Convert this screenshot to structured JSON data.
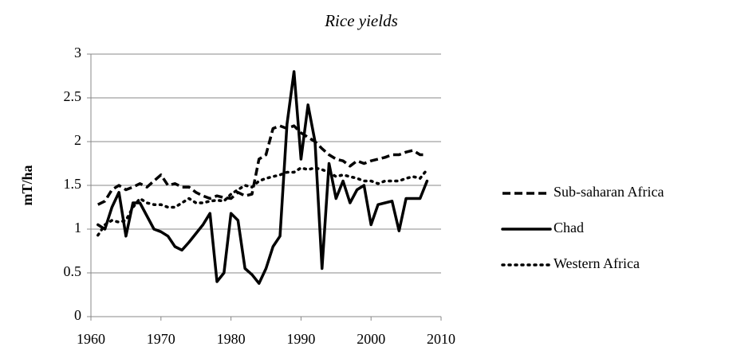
{
  "chart_data": {
    "type": "line",
    "title": "Rice yields",
    "y_label": "mT/ha",
    "x": [
      1961,
      1962,
      1963,
      1964,
      1965,
      1966,
      1967,
      1968,
      1969,
      1970,
      1971,
      1972,
      1973,
      1974,
      1975,
      1976,
      1977,
      1978,
      1979,
      1980,
      1981,
      1982,
      1983,
      1984,
      1985,
      1986,
      1987,
      1988,
      1989,
      1990,
      1991,
      1992,
      1993,
      1994,
      1995,
      1996,
      1997,
      1998,
      1999,
      2000,
      2001,
      2002,
      2003,
      2004,
      2005,
      2006,
      2007,
      2008
    ],
    "series": [
      {
        "name": "Sub-saharan Africa",
        "color": "#000000",
        "style": "dashed",
        "values": [
          1.28,
          1.32,
          1.45,
          1.5,
          1.45,
          1.48,
          1.52,
          1.48,
          1.55,
          1.62,
          1.5,
          1.52,
          1.48,
          1.48,
          1.42,
          1.38,
          1.35,
          1.38,
          1.36,
          1.35,
          1.42,
          1.38,
          1.4,
          1.8,
          1.85,
          2.15,
          2.18,
          2.15,
          2.18,
          2.1,
          2.05,
          2.0,
          1.92,
          1.85,
          1.8,
          1.78,
          1.72,
          1.78,
          1.75,
          1.78,
          1.8,
          1.82,
          1.85,
          1.85,
          1.88,
          1.9,
          1.85,
          1.85
        ]
      },
      {
        "name": "Chad",
        "color": "#000000",
        "style": "solid",
        "values": [
          1.05,
          1.0,
          1.25,
          1.42,
          0.92,
          1.3,
          1.3,
          1.15,
          1.0,
          0.97,
          0.92,
          0.8,
          0.76,
          0.85,
          0.95,
          1.05,
          1.18,
          0.4,
          0.5,
          1.18,
          1.1,
          0.55,
          0.48,
          0.38,
          0.55,
          0.8,
          0.92,
          2.2,
          2.8,
          1.8,
          2.42,
          2.0,
          0.55,
          1.75,
          1.35,
          1.55,
          1.3,
          1.45,
          1.5,
          1.05,
          1.28,
          1.3,
          1.32,
          0.98,
          1.35,
          1.35,
          1.35,
          1.55
        ]
      },
      {
        "name": "Western Africa",
        "color": "#000000",
        "style": "dotted",
        "values": [
          0.93,
          1.05,
          1.1,
          1.08,
          1.1,
          1.25,
          1.35,
          1.3,
          1.28,
          1.28,
          1.25,
          1.25,
          1.3,
          1.35,
          1.3,
          1.3,
          1.32,
          1.33,
          1.32,
          1.4,
          1.45,
          1.5,
          1.48,
          1.55,
          1.58,
          1.6,
          1.62,
          1.65,
          1.65,
          1.7,
          1.68,
          1.7,
          1.68,
          1.65,
          1.6,
          1.62,
          1.6,
          1.58,
          1.55,
          1.55,
          1.52,
          1.55,
          1.55,
          1.55,
          1.58,
          1.6,
          1.58,
          1.68
        ]
      }
    ],
    "xlim": [
      1960,
      2010
    ],
    "xticks": [
      1960,
      1970,
      1980,
      1990,
      2000,
      2010
    ],
    "ylim": [
      0,
      3
    ],
    "yticks": [
      0,
      0.5,
      1,
      1.5,
      2,
      2.5,
      3
    ],
    "grid": true,
    "legend": "right"
  }
}
